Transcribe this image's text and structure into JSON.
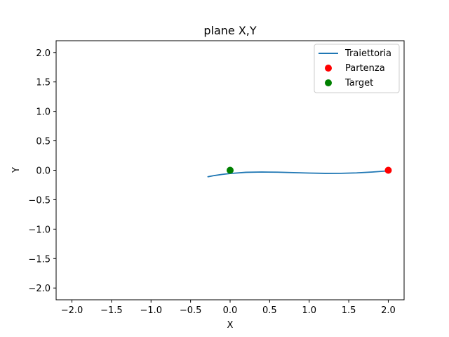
{
  "chart_data": {
    "type": "line",
    "title": "plane X,Y",
    "xlabel": "X",
    "ylabel": "Y",
    "xlim": [
      -2.2,
      2.2
    ],
    "ylim": [
      -2.2,
      2.2
    ],
    "xticks": [
      -2.0,
      -1.5,
      -1.0,
      -0.5,
      0.0,
      0.5,
      1.0,
      1.5,
      2.0
    ],
    "xtick_labels": [
      "−2.0",
      "−1.5",
      "−1.0",
      "−0.5",
      "0.0",
      "0.5",
      "1.0",
      "1.5",
      "2.0"
    ],
    "yticks": [
      -2.0,
      -1.5,
      -1.0,
      -0.5,
      0.0,
      0.5,
      1.0,
      1.5,
      2.0
    ],
    "ytick_labels": [
      "−2.0",
      "−1.5",
      "−1.0",
      "−0.5",
      "0.0",
      "0.5",
      "1.0",
      "1.5",
      "2.0"
    ],
    "grid": false,
    "legend_position": "top-right",
    "series": [
      {
        "name": "Traiettoria",
        "kind": "line",
        "color": "#1f77b4",
        "x": [
          2.0,
          1.8,
          1.6,
          1.4,
          1.2,
          1.0,
          0.8,
          0.6,
          0.4,
          0.2,
          0.0,
          -0.1,
          -0.2,
          -0.28
        ],
        "y": [
          -0.01,
          -0.03,
          -0.045,
          -0.052,
          -0.053,
          -0.048,
          -0.04,
          -0.033,
          -0.03,
          -0.035,
          -0.055,
          -0.07,
          -0.09,
          -0.11
        ]
      },
      {
        "name": "Partenza",
        "kind": "scatter",
        "color": "#ff0000",
        "x": [
          2.0
        ],
        "y": [
          0.0
        ]
      },
      {
        "name": "Target",
        "kind": "scatter",
        "color": "#008000",
        "x": [
          0.0
        ],
        "y": [
          0.0
        ]
      }
    ]
  }
}
